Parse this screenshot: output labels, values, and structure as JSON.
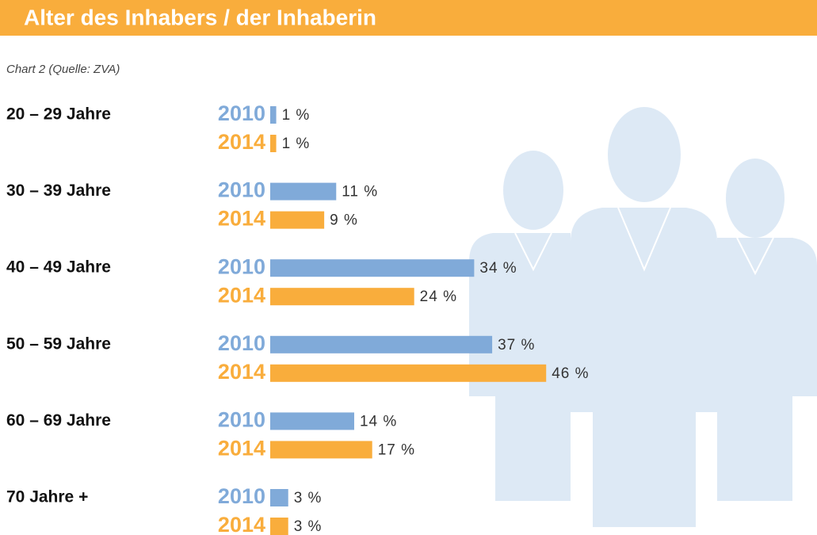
{
  "chart_data": {
    "type": "hbar",
    "title": "Alter des Inhabers / der Inhaberin",
    "subtitle": "Chart 2 (Quelle: ZVA)",
    "categories": [
      "20 – 29 Jahre",
      "30 – 39 Jahre",
      "40 – 49 Jahre",
      "50 – 59 Jahre",
      "60 – 69 Jahre",
      "70 Jahre +"
    ],
    "series": [
      {
        "name": "2010",
        "color": "#80aad9",
        "values": [
          1,
          11,
          34,
          37,
          14,
          3
        ],
        "value_labels": [
          "1 %",
          "11 %",
          "34 %",
          "37 %",
          "14 %",
          "3 %"
        ]
      },
      {
        "name": "2014",
        "color": "#f9ad3c",
        "values": [
          1,
          9,
          24,
          46,
          17,
          3
        ],
        "value_labels": [
          "1 %",
          "9 %",
          "24 %",
          "46 %",
          "17 %",
          "3 %"
        ]
      }
    ]
  }
}
